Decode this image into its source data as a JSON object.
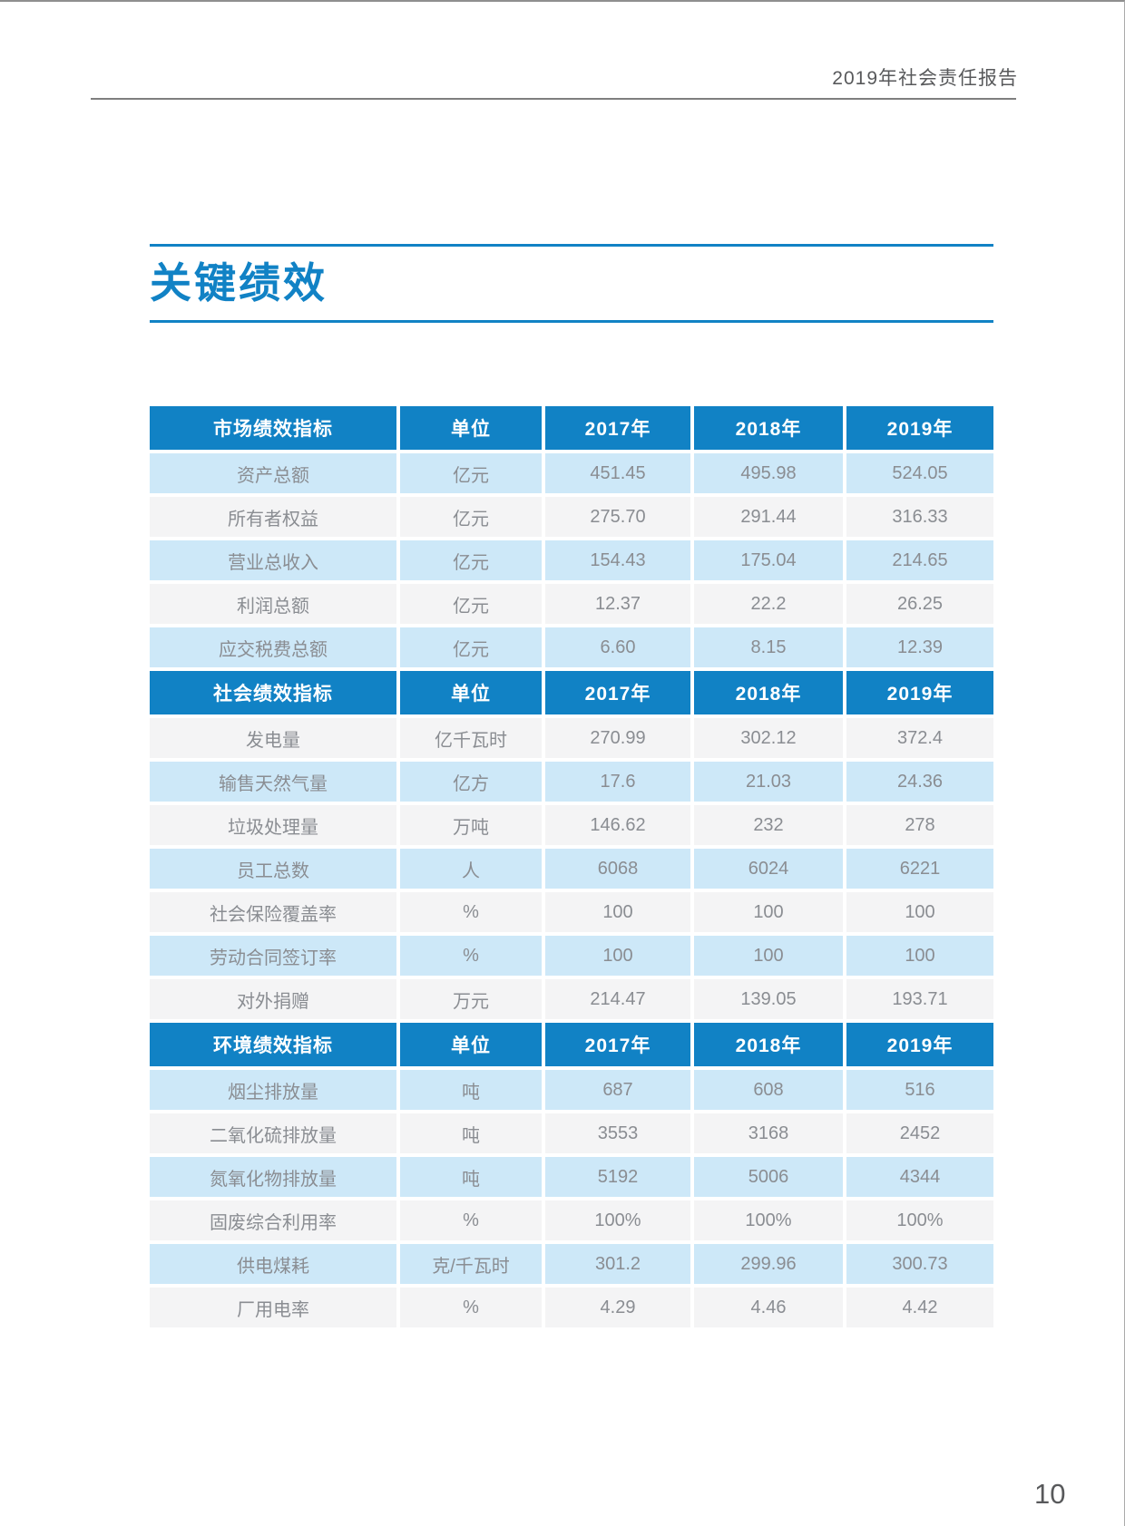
{
  "page": {
    "header_title": "2019年社会责任报告",
    "title": "关键绩效",
    "page_number": "10"
  },
  "table": {
    "unit_header": "单位",
    "year_headers": [
      "2017年",
      "2018年",
      "2019年"
    ],
    "sections": [
      {
        "header": "市场绩效指标",
        "rows": [
          {
            "indicator": "资产总额",
            "unit": "亿元",
            "values": [
              "451.45",
              "495.98",
              "524.05"
            ]
          },
          {
            "indicator": "所有者权益",
            "unit": "亿元",
            "values": [
              "275.70",
              "291.44",
              "316.33"
            ]
          },
          {
            "indicator": "营业总收入",
            "unit": "亿元",
            "values": [
              "154.43",
              "175.04",
              "214.65"
            ]
          },
          {
            "indicator": "利润总额",
            "unit": "亿元",
            "values": [
              "12.37",
              "22.2",
              "26.25"
            ]
          },
          {
            "indicator": "应交税费总额",
            "unit": "亿元",
            "values": [
              "6.60",
              "8.15",
              "12.39"
            ]
          }
        ]
      },
      {
        "header": "社会绩效指标",
        "rows": [
          {
            "indicator": "发电量",
            "unit": "亿千瓦时",
            "values": [
              "270.99",
              "302.12",
              "372.4"
            ]
          },
          {
            "indicator": "输售天然气量",
            "unit": "亿方",
            "values": [
              "17.6",
              "21.03",
              "24.36"
            ]
          },
          {
            "indicator": "垃圾处理量",
            "unit": "万吨",
            "values": [
              "146.62",
              "232",
              "278"
            ]
          },
          {
            "indicator": "员工总数",
            "unit": "人",
            "values": [
              "6068",
              "6024",
              "6221"
            ]
          },
          {
            "indicator": "社会保险覆盖率",
            "unit": "%",
            "values": [
              "100",
              "100",
              "100"
            ]
          },
          {
            "indicator": "劳动合同签订率",
            "unit": "%",
            "values": [
              "100",
              "100",
              "100"
            ]
          },
          {
            "indicator": "对外捐赠",
            "unit": "万元",
            "values": [
              "214.47",
              "139.05",
              "193.71"
            ]
          }
        ]
      },
      {
        "header": "环境绩效指标",
        "rows": [
          {
            "indicator": "烟尘排放量",
            "unit": "吨",
            "values": [
              "687",
              "608",
              "516"
            ]
          },
          {
            "indicator": "二氧化硫排放量",
            "unit": "吨",
            "values": [
              "3553",
              "3168",
              "2452"
            ]
          },
          {
            "indicator": "氮氧化物排放量",
            "unit": "吨",
            "values": [
              "5192",
              "5006",
              "4344"
            ]
          },
          {
            "indicator": "固废综合利用率",
            "unit": "%",
            "values": [
              "100%",
              "100%",
              "100%"
            ]
          },
          {
            "indicator": "供电煤耗",
            "unit": "克/千瓦时",
            "values": [
              "301.2",
              "299.96",
              "300.73"
            ]
          },
          {
            "indicator": "厂用电率",
            "unit": "%",
            "values": [
              "4.29",
              "4.46",
              "4.42"
            ]
          }
        ]
      }
    ]
  },
  "colors": {
    "primary_blue": "#1182C5",
    "row_blue": "#CDE8F8",
    "row_gray": "#F4F4F5",
    "cell_text": "#8A8D92",
    "header_text_gray": "#58595B"
  }
}
